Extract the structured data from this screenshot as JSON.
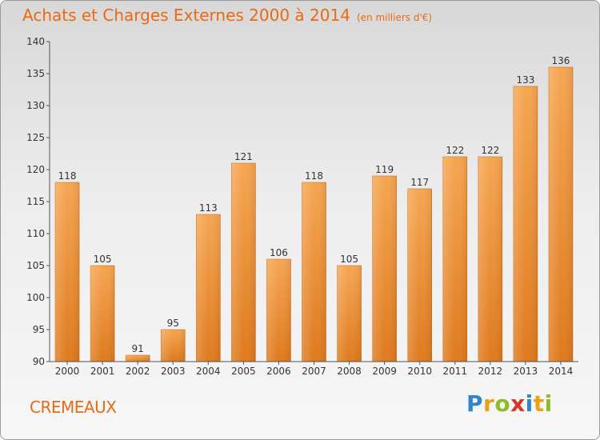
{
  "title": "Achats et Charges Externes 2000 à 2014",
  "unit": "(en milliers d'€)",
  "commune": "CREMEAUX",
  "logo": {
    "letters": [
      "P",
      "r",
      "o",
      "x",
      "i",
      "t",
      "i"
    ],
    "colors": [
      "#2f86c8",
      "#e8a317",
      "#8bbf2a",
      "#d9362b",
      "#2f86c8",
      "#e8a317",
      "#8bbf2a"
    ]
  },
  "colors": {
    "accent": "#ea6a13",
    "bar_light": "#f6a652",
    "bar_dark": "#e07b1f"
  },
  "chart_data": {
    "type": "bar",
    "categories": [
      "2000",
      "2001",
      "2002",
      "2003",
      "2004",
      "2005",
      "2006",
      "2007",
      "2008",
      "2009",
      "2010",
      "2011",
      "2012",
      "2013",
      "2014"
    ],
    "values": [
      118,
      105,
      91,
      95,
      113,
      121,
      106,
      118,
      105,
      119,
      117,
      122,
      122,
      133,
      136
    ],
    "ylim": [
      90,
      140
    ],
    "yticks": [
      90,
      95,
      100,
      105,
      110,
      115,
      120,
      125,
      130,
      135,
      140
    ],
    "grid": false,
    "data_labels": true
  }
}
